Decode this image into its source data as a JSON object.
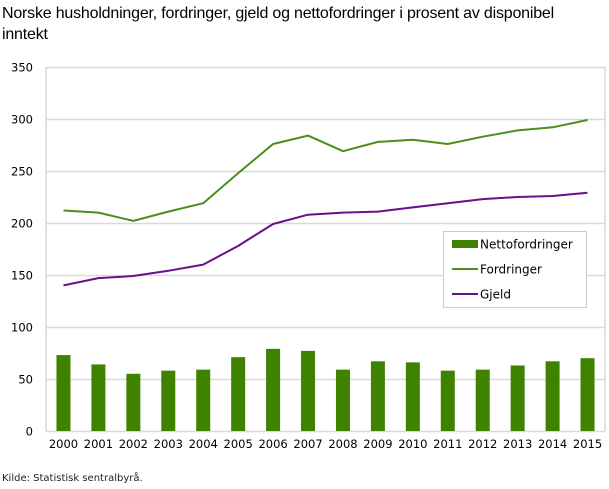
{
  "title": "Norske husholdninger, fordringer, gjeld og nettofordringer i prosent av disponibel inntekt",
  "source": "Kilde: Statistisk sentralbyrå.",
  "colors": {
    "nettofordringer": "#3f8200",
    "fordringer": "#4a8f1a",
    "gjeld": "#6b0e8a",
    "grid": "#d9d9d9",
    "legend_border": "#cccccc"
  },
  "legend": {
    "items": [
      {
        "label": "Nettofordringer",
        "type": "bar"
      },
      {
        "label": "Fordringer",
        "type": "line"
      },
      {
        "label": "Gjeld",
        "type": "line"
      }
    ]
  },
  "chart_data": {
    "type": "bar+line",
    "title": "Norske husholdninger, fordringer, gjeld og nettofordringer i prosent av disponibel inntekt",
    "xlabel": "",
    "ylabel": "",
    "ylim": [
      0,
      350
    ],
    "yticks": [
      0,
      50,
      100,
      150,
      200,
      250,
      300,
      350
    ],
    "grid": true,
    "legend_position": "inside right, middle",
    "categories": [
      "2000",
      "2001",
      "2002",
      "2003",
      "2004",
      "2005",
      "2006",
      "2007",
      "2008",
      "2009",
      "2010",
      "2011",
      "2012",
      "2013",
      "2014",
      "2015"
    ],
    "series": [
      {
        "name": "Nettofordringer",
        "type": "bar",
        "values": [
          73,
          64,
          55,
          58,
          59,
          71,
          79,
          77,
          59,
          67,
          66,
          58,
          59,
          63,
          67,
          70
        ]
      },
      {
        "name": "Fordringer",
        "type": "line",
        "values": [
          212,
          210,
          202,
          211,
          219,
          248,
          276,
          284,
          269,
          278,
          280,
          276,
          283,
          289,
          292,
          299
        ]
      },
      {
        "name": "Gjeld",
        "type": "line",
        "values": [
          140,
          147,
          149,
          154,
          160,
          178,
          199,
          208,
          210,
          211,
          215,
          219,
          223,
          225,
          226,
          229
        ]
      }
    ],
    "source": "Kilde: Statistisk sentralbyrå."
  }
}
